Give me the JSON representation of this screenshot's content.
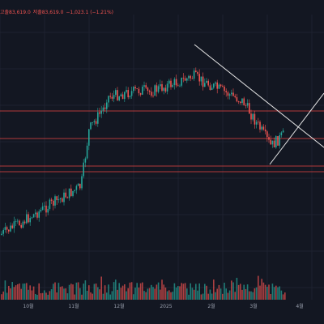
{
  "colors": {
    "background": "#131722",
    "grid": "#1e2230",
    "up": "#26a69a",
    "down": "#ef5350",
    "hline": "#b23a3a",
    "trendline": "#e8e8e8",
    "axis_text": "#9aa0ae"
  },
  "ohlc": {
    "high": "고출83,619.0",
    "low": "저출83,619.0",
    "change": "−1,023.1 (−1.21%)"
  },
  "chart_data": {
    "type": "candlestick",
    "x_axis_labels": [
      "10월",
      "11월",
      "12월",
      "2025",
      "2월",
      "3월",
      "4월"
    ],
    "horizontal_lines": [
      0.628,
      0.72,
      0.85,
      0.88
    ],
    "trendlines": [
      {
        "from": [
          0.6,
          0.13
        ],
        "to": [
          1.0,
          0.46
        ]
      },
      {
        "from": [
          0.83,
          0.51
        ],
        "to": [
          1.0,
          0.29
        ]
      }
    ],
    "price_path_shape": "uptrend from October to a peak in late January, then decline into March with a descending-triangle pattern",
    "volume": "histogram at bottom, mixed up/down bars"
  }
}
